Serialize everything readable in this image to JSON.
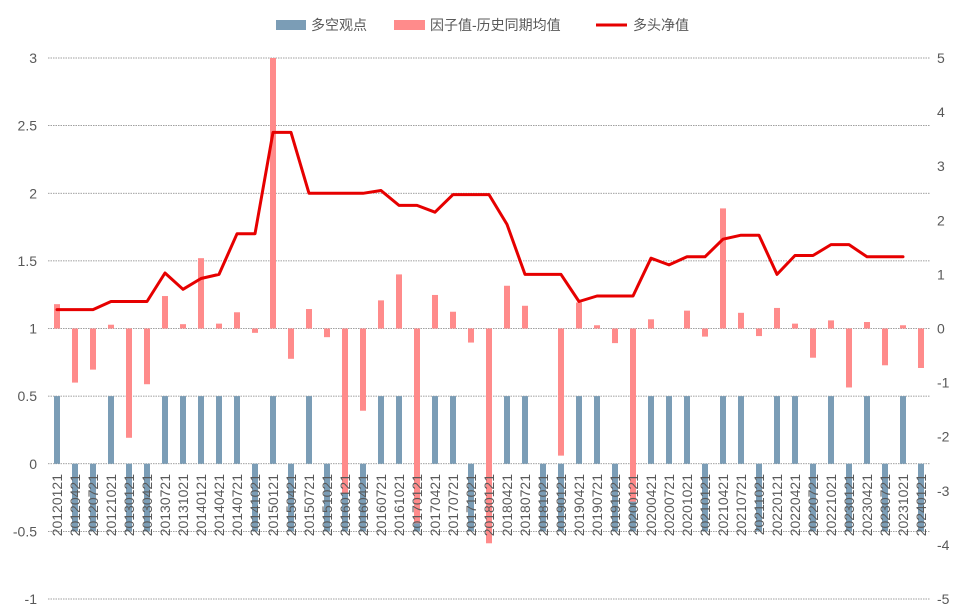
{
  "chart_data": {
    "type": "bar",
    "categories": [
      "20120121",
      "20120421",
      "20120721",
      "20121021",
      "20130121",
      "20130421",
      "20130721",
      "20131021",
      "20140121",
      "20140421",
      "20140721",
      "20141021",
      "20150121",
      "20150421",
      "20150721",
      "20151021",
      "20160121",
      "20160421",
      "20160721",
      "20161021",
      "20170121",
      "20170421",
      "20170721",
      "20171021",
      "20180121",
      "20180421",
      "20180721",
      "20181021",
      "20190121",
      "20190421",
      "20190721",
      "20191021",
      "20200121",
      "20200421",
      "20200721",
      "20201021",
      "20210121",
      "20210421",
      "20210721",
      "20211021",
      "20220121",
      "20220421",
      "20220721",
      "20221021",
      "20230121",
      "20230421",
      "20230721",
      "20231021",
      "20240121"
    ],
    "series": [
      {
        "name": "多空观点",
        "type": "bar",
        "axis": "left",
        "color": "#7b9db6",
        "values": [
          0.5,
          -0.5,
          -0.5,
          0.5,
          -0.5,
          -0.5,
          0.5,
          0.5,
          0.5,
          0.5,
          0.5,
          -0.5,
          0.5,
          -0.5,
          0.5,
          -0.5,
          -0.5,
          -0.5,
          0.5,
          0.5,
          -0.5,
          0.5,
          0.5,
          -0.5,
          -0.5,
          0.5,
          0.5,
          -0.5,
          -0.5,
          0.5,
          0.5,
          -0.5,
          -0.5,
          0.5,
          0.5,
          0.5,
          -0.5,
          0.5,
          0.5,
          -0.5,
          0.5,
          0.5,
          -0.5,
          0.5,
          -0.5,
          0.5,
          -0.5,
          0.5,
          -0.5
        ]
      },
      {
        "name": "因子值-历史同期均值",
        "type": "bar",
        "axis": "right",
        "color": "#ff8b8b",
        "values": [
          0.45,
          -1.0,
          -0.76,
          0.07,
          -2.02,
          -1.03,
          0.6,
          0.08,
          1.3,
          0.09,
          0.3,
          -0.08,
          5.0,
          -0.56,
          0.36,
          -0.16,
          -3.05,
          -1.52,
          0.52,
          1.0,
          -3.6,
          0.62,
          0.31,
          -0.26,
          -3.97,
          0.79,
          0.42,
          0.0,
          -2.35,
          0.48,
          0.06,
          -0.27,
          -3.2,
          0.17,
          0.0,
          0.33,
          -0.15,
          2.22,
          0.29,
          -0.14,
          0.38,
          0.09,
          -0.54,
          0.15,
          -1.09,
          0.12,
          -0.68,
          0.06,
          -0.73
        ]
      },
      {
        "name": "多头净值",
        "type": "line",
        "axis": "left",
        "color": "#e60000",
        "values": [
          1.14,
          1.14,
          1.14,
          1.2,
          1.2,
          1.2,
          1.41,
          1.29,
          1.37,
          1.4,
          1.7,
          1.7,
          2.45,
          2.45,
          2.0,
          2.0,
          2.0,
          2.0,
          2.02,
          1.91,
          1.91,
          1.86,
          1.99,
          1.99,
          1.99,
          1.77,
          1.4,
          1.4,
          1.4,
          1.2,
          1.24,
          1.24,
          1.24,
          1.52,
          1.47,
          1.53,
          1.53,
          1.66,
          1.69,
          1.69,
          1.4,
          1.54,
          1.54,
          1.62,
          1.62,
          1.53,
          1.53,
          1.53,
          null
        ]
      }
    ],
    "y_left": {
      "range": [
        -1,
        3
      ],
      "ticks": [
        "3",
        "2.5",
        "2",
        "1.5",
        "1",
        "0.5",
        "0",
        "-0.5",
        "-1"
      ]
    },
    "y_right": {
      "range": [
        -5,
        5
      ],
      "ticks": [
        "5",
        "4",
        "3",
        "2",
        "1",
        "0",
        "-1",
        "-2",
        "-3",
        "-4",
        "-5"
      ]
    },
    "grid": true,
    "legend": "top"
  }
}
